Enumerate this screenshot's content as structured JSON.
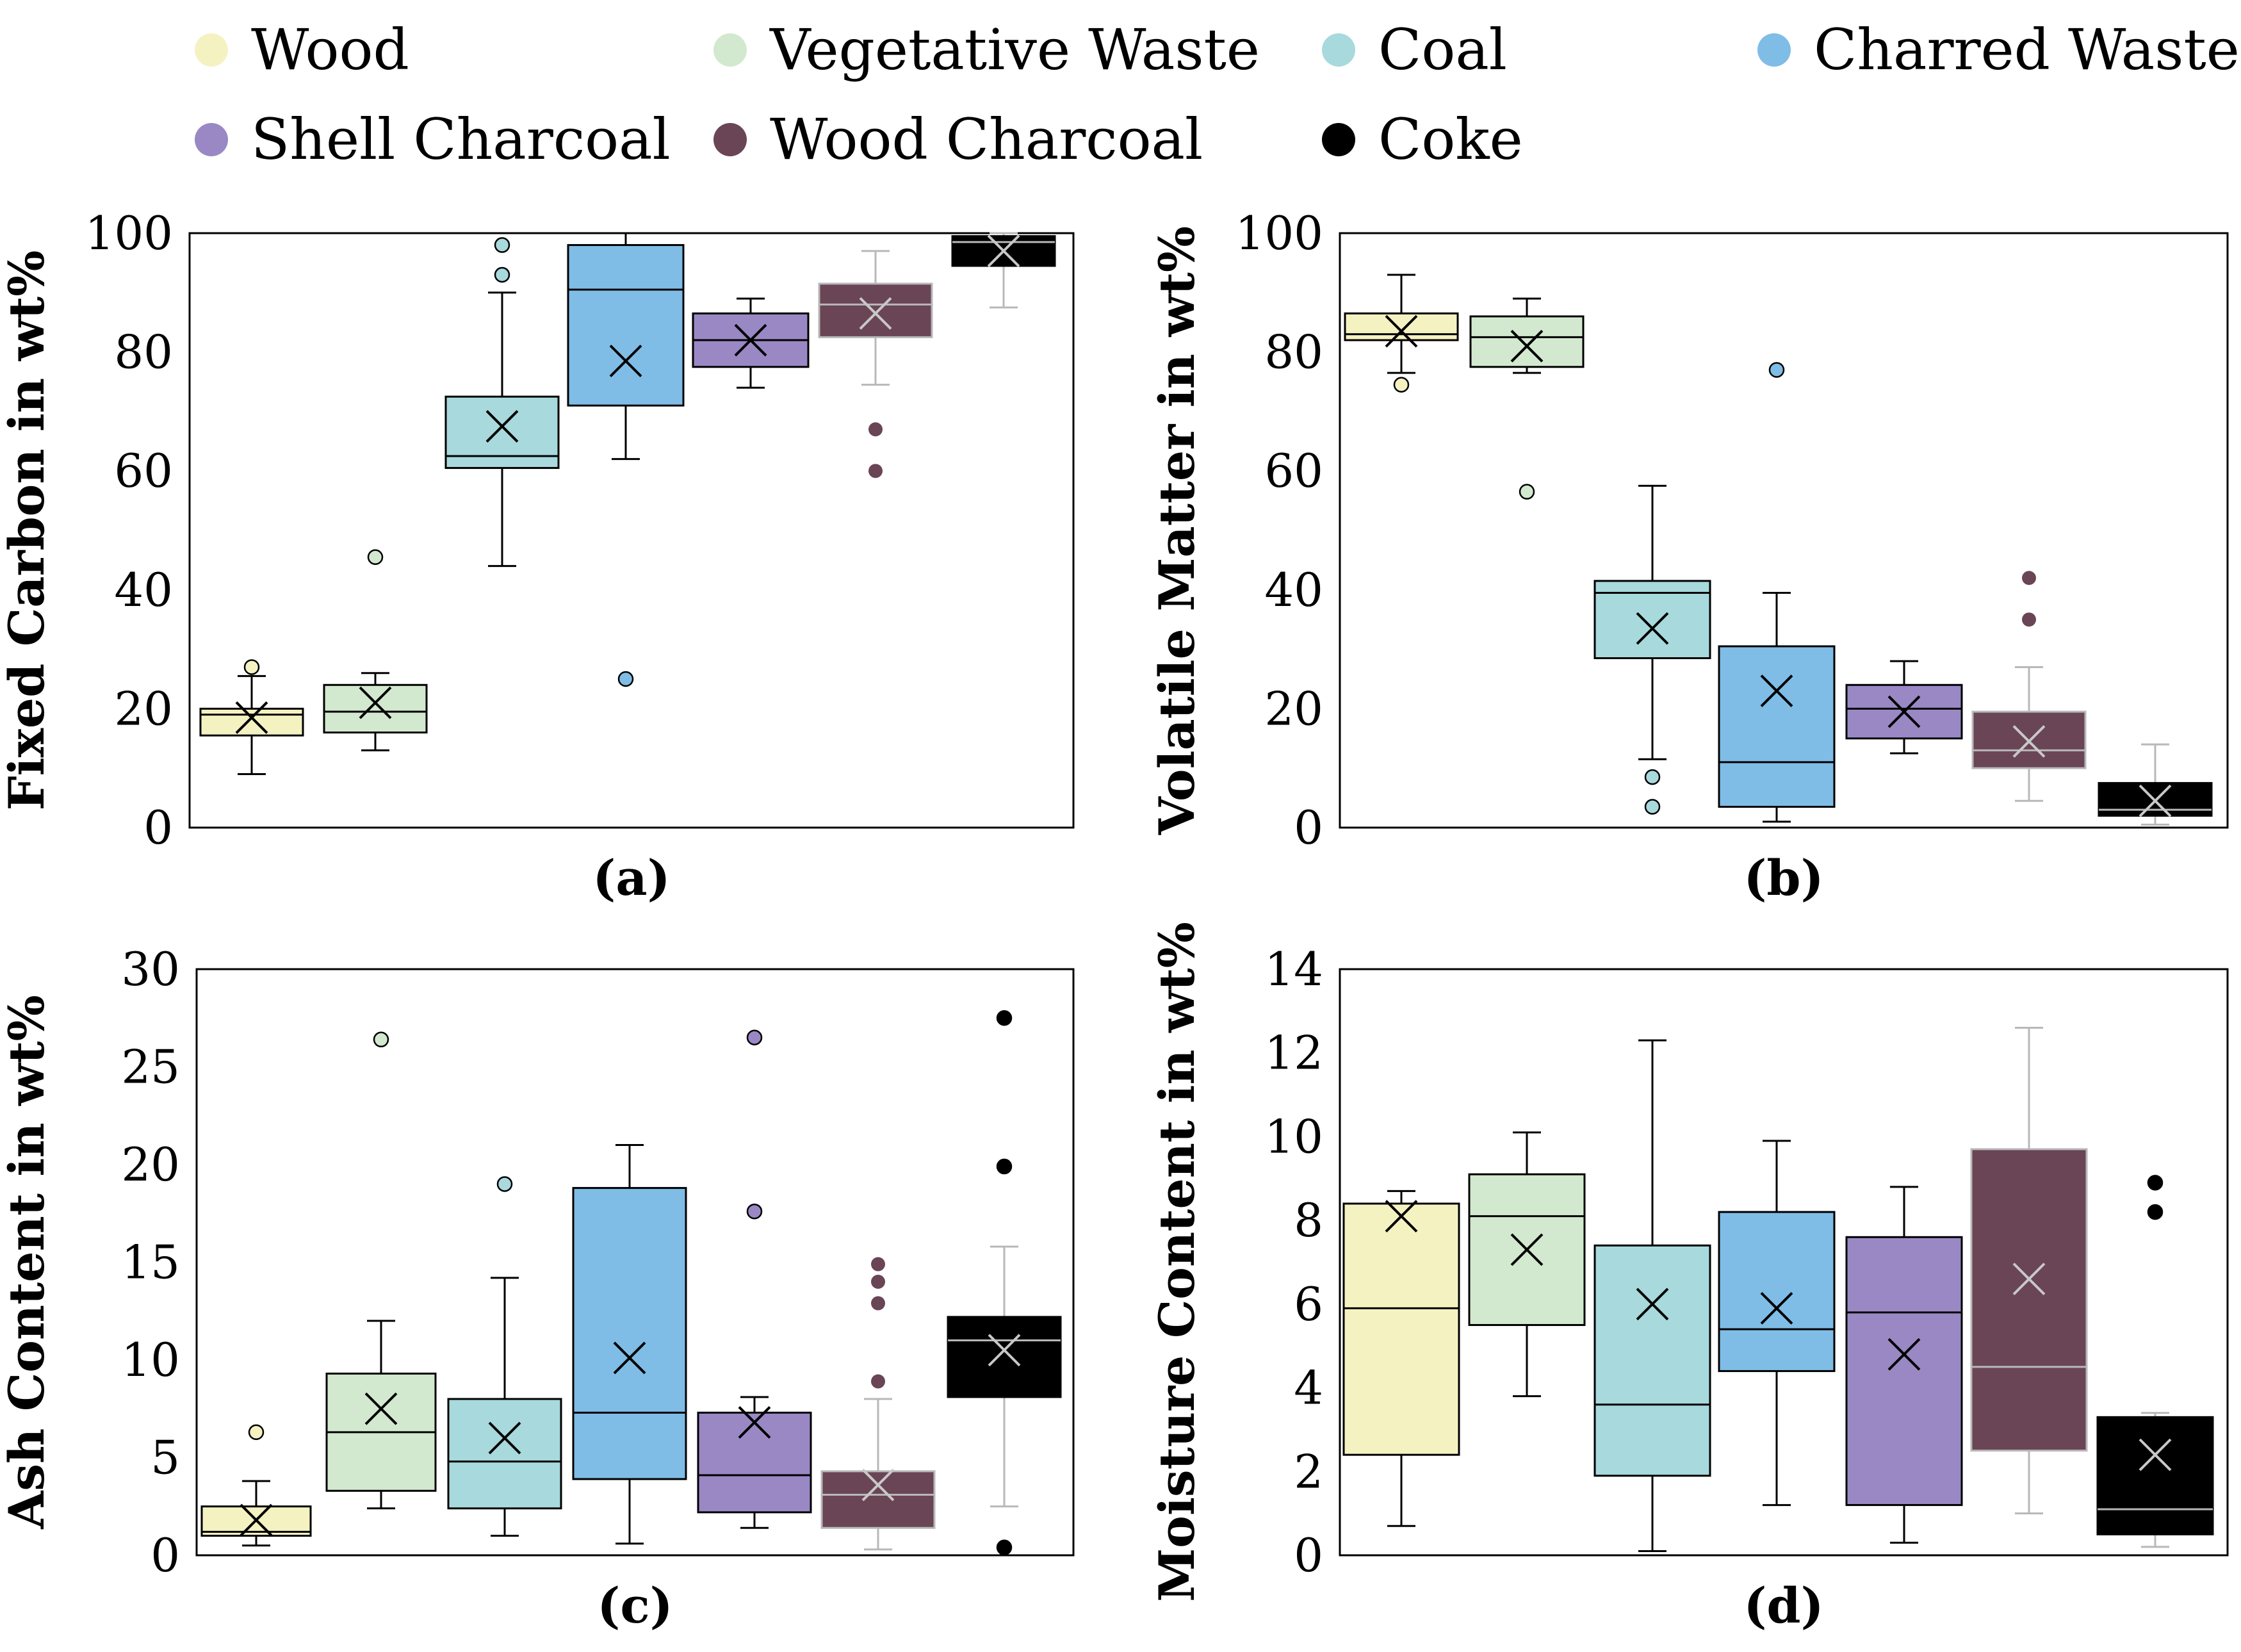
{
  "legend": [
    {
      "label": "Wood",
      "color": "#f5f2c2"
    },
    {
      "label": "Vegetative Waste",
      "color": "#d3e9cf"
    },
    {
      "label": "Coal",
      "color": "#a8d9dc"
    },
    {
      "label": "Charred Waste",
      "color": "#7fbde6"
    },
    {
      "label": "Shell Charcoal",
      "color": "#9a88c5"
    },
    {
      "label": "Wood Charcoal",
      "color": "#6a4556"
    },
    {
      "label": "Coke",
      "color": "#000000"
    }
  ],
  "chart_data": [
    {
      "type": "box",
      "panel": "(a)",
      "ylabel": "Fixed Carbon in wt%",
      "ylim": [
        0,
        100
      ],
      "yticks": [
        0,
        20,
        40,
        60,
        80,
        100
      ],
      "series": [
        {
          "name": "Wood",
          "whisker_low": 9,
          "q1": 15.5,
          "median": 19,
          "q3": 20,
          "whisker_high": 25.5,
          "mean": 18.5,
          "outliers": [
            27
          ]
        },
        {
          "name": "Vegetative Waste",
          "whisker_low": 13,
          "q1": 16,
          "median": 19.5,
          "q3": 24,
          "whisker_high": 26,
          "mean": 21,
          "outliers": [
            45.5
          ]
        },
        {
          "name": "Coal",
          "whisker_low": 44,
          "q1": 60.5,
          "median": 62.5,
          "q3": 72.5,
          "whisker_high": 90,
          "mean": 67.5,
          "outliers": [
            93,
            98
          ]
        },
        {
          "name": "Charred Waste",
          "whisker_low": 62,
          "q1": 71,
          "median": 90.5,
          "q3": 98,
          "whisker_high": 100,
          "mean": 78.5,
          "outliers": [
            25
          ]
        },
        {
          "name": "Shell Charcoal",
          "whisker_low": 74,
          "q1": 77.5,
          "median": 82,
          "q3": 86.5,
          "whisker_high": 89,
          "mean": 82,
          "outliers": []
        },
        {
          "name": "Wood Charcoal",
          "whisker_low": 74.5,
          "q1": 82.5,
          "median": 88,
          "q3": 91.5,
          "whisker_high": 97,
          "mean": 86.5,
          "outliers": [
            60,
            67
          ]
        },
        {
          "name": "Coke",
          "whisker_low": 87.5,
          "q1": 94.5,
          "median": 98.5,
          "q3": 99.5,
          "whisker_high": 100,
          "mean": 97,
          "outliers": []
        }
      ]
    },
    {
      "type": "box",
      "panel": "(b)",
      "ylabel": "Volatile Matter in wt%",
      "ylim": [
        0,
        100
      ],
      "yticks": [
        0,
        20,
        40,
        60,
        80,
        100
      ],
      "series": [
        {
          "name": "Wood",
          "whisker_low": 76.5,
          "q1": 82,
          "median": 83,
          "q3": 86.5,
          "whisker_high": 93,
          "mean": 83.5,
          "outliers": [
            74.5
          ]
        },
        {
          "name": "Vegetative Waste",
          "whisker_low": 76.5,
          "q1": 77.5,
          "median": 82.5,
          "q3": 86,
          "whisker_high": 89,
          "mean": 81,
          "outliers": [
            56.5
          ]
        },
        {
          "name": "Coal",
          "whisker_low": 11.5,
          "q1": 28.5,
          "median": 39.5,
          "q3": 41.5,
          "whisker_high": 57.5,
          "mean": 33.5,
          "outliers": [
            3.5,
            8.5
          ]
        },
        {
          "name": "Charred Waste",
          "whisker_low": 1,
          "q1": 3.5,
          "median": 11,
          "q3": 30.5,
          "whisker_high": 39.5,
          "mean": 23,
          "outliers": [
            77
          ]
        },
        {
          "name": "Shell Charcoal",
          "whisker_low": 12.5,
          "q1": 15,
          "median": 20,
          "q3": 24,
          "whisker_high": 28,
          "mean": 19.5,
          "outliers": []
        },
        {
          "name": "Wood Charcoal",
          "whisker_low": 4.5,
          "q1": 10,
          "median": 13,
          "q3": 19.5,
          "whisker_high": 27,
          "mean": 14.5,
          "outliers": [
            35,
            42
          ]
        },
        {
          "name": "Coke",
          "whisker_low": 0.5,
          "q1": 2,
          "median": 3,
          "q3": 7.5,
          "whisker_high": 14,
          "mean": 4.5,
          "outliers": []
        }
      ]
    },
    {
      "type": "box",
      "panel": "(c)",
      "ylabel": "Ash Content in wt%",
      "ylim": [
        0,
        30
      ],
      "yticks": [
        0,
        5,
        10,
        15,
        20,
        25,
        30
      ],
      "series": [
        {
          "name": "Wood",
          "whisker_low": 0.5,
          "q1": 1,
          "median": 1.2,
          "q3": 2.5,
          "whisker_high": 3.8,
          "mean": 1.8,
          "outliers": [
            6.3
          ]
        },
        {
          "name": "Vegetative Waste",
          "whisker_low": 2.4,
          "q1": 3.3,
          "median": 6.3,
          "q3": 9.3,
          "whisker_high": 12,
          "mean": 7.5,
          "outliers": [
            26.4
          ]
        },
        {
          "name": "Coal",
          "whisker_low": 1,
          "q1": 2.4,
          "median": 4.8,
          "q3": 8,
          "whisker_high": 14.2,
          "mean": 6,
          "outliers": [
            19
          ]
        },
        {
          "name": "Charred Waste",
          "whisker_low": 0.6,
          "q1": 3.9,
          "median": 7.3,
          "q3": 18.8,
          "whisker_high": 21,
          "mean": 10.1,
          "outliers": []
        },
        {
          "name": "Shell Charcoal",
          "whisker_low": 1.4,
          "q1": 2.2,
          "median": 4.1,
          "q3": 7.3,
          "whisker_high": 8.1,
          "mean": 6.8,
          "outliers": [
            17.6,
            26.5
          ]
        },
        {
          "name": "Wood Charcoal",
          "whisker_low": 0.3,
          "q1": 1.4,
          "median": 3.1,
          "q3": 4.3,
          "whisker_high": 8,
          "mean": 3.6,
          "outliers": [
            8.9,
            12.9,
            14,
            14.9
          ]
        },
        {
          "name": "Coke",
          "whisker_low": 2.5,
          "q1": 8.1,
          "median": 11,
          "q3": 12.2,
          "whisker_high": 15.8,
          "mean": 10.5,
          "outliers": [
            0.4,
            19.9,
            27.5
          ]
        }
      ]
    },
    {
      "type": "box",
      "panel": "(d)",
      "ylabel": "Moisture Content in wt%",
      "ylim": [
        0,
        14
      ],
      "yticks": [
        0,
        2,
        4,
        6,
        8,
        10,
        12,
        14
      ],
      "series": [
        {
          "name": "Wood",
          "whisker_low": 0.7,
          "q1": 2.4,
          "median": 5.9,
          "q3": 8.4,
          "whisker_high": 8.7,
          "mean": 8.1,
          "outliers": []
        },
        {
          "name": "Vegetative Waste",
          "whisker_low": 3.8,
          "q1": 5.5,
          "median": 8.1,
          "q3": 9.1,
          "whisker_high": 10.1,
          "mean": 7.3,
          "outliers": []
        },
        {
          "name": "Coal",
          "whisker_low": 0.1,
          "q1": 1.9,
          "median": 3.6,
          "q3": 7.4,
          "whisker_high": 12.3,
          "mean": 6,
          "outliers": []
        },
        {
          "name": "Charred Waste",
          "whisker_low": 1.2,
          "q1": 4.4,
          "median": 5.4,
          "q3": 8.2,
          "whisker_high": 9.9,
          "mean": 5.9,
          "outliers": []
        },
        {
          "name": "Shell Charcoal",
          "whisker_low": 0.3,
          "q1": 1.2,
          "median": 5.8,
          "q3": 7.6,
          "whisker_high": 8.8,
          "mean": 4.8,
          "outliers": []
        },
        {
          "name": "Wood Charcoal",
          "whisker_low": 1,
          "q1": 2.5,
          "median": 4.5,
          "q3": 9.7,
          "whisker_high": 12.6,
          "mean": 6.6,
          "outliers": []
        },
        {
          "name": "Coke",
          "whisker_low": 0.2,
          "q1": 0.5,
          "median": 1.1,
          "q3": 3.3,
          "whisker_high": 3.4,
          "mean": 2.4,
          "outliers": [
            8.2,
            8.9
          ]
        }
      ]
    }
  ]
}
